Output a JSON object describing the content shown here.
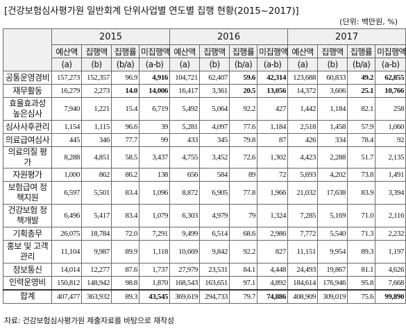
{
  "title": "[건강보험심사평가원 일반회계 단위사업별 연도별 집행 현황(2015~2017)]",
  "unit": "(단위: 백만원, %)",
  "years": [
    "2015",
    "2016",
    "2017"
  ],
  "columns": [
    {
      "name": "예산액",
      "code": "(a)"
    },
    {
      "name": "집행액",
      "code": "(b)"
    },
    {
      "name": "집행률",
      "code": "(b/a)"
    },
    {
      "name": "미집행액",
      "code": "(a-b)"
    }
  ],
  "rows": [
    {
      "name": "공통운영경비",
      "values": [
        "157,273",
        "152,357",
        "96.9",
        "4,916",
        "104,721",
        "62,407",
        "59.6",
        "42,314",
        "123,688",
        "60,833",
        "49.2",
        "62,855"
      ],
      "bold": [
        false,
        false,
        false,
        true,
        false,
        false,
        true,
        true,
        false,
        false,
        true,
        true
      ]
    },
    {
      "name": "재무활동",
      "values": [
        "16,279",
        "2,273",
        "14.0",
        "14,006",
        "16,417",
        "3,361",
        "20.5",
        "13,056",
        "14,372",
        "3,606",
        "25.1",
        "10,766"
      ],
      "bold": [
        false,
        false,
        true,
        true,
        false,
        false,
        true,
        true,
        false,
        false,
        true,
        true
      ]
    },
    {
      "name": "효율효과성 높은심사",
      "values": [
        "7,940",
        "1,221",
        "15.4",
        "6,719",
        "5,492",
        "5,064",
        "92.2",
        "427",
        "1,442",
        "1,184",
        "82.1",
        "258"
      ],
      "bold": [
        false,
        false,
        false,
        false,
        false,
        false,
        false,
        false,
        false,
        false,
        false,
        false
      ]
    },
    {
      "name": "심사사후관리",
      "values": [
        "1,154",
        "1,115",
        "96.6",
        "39",
        "5,281",
        "4,097",
        "77.6",
        "1,184",
        "2,518",
        "1,458",
        "57.9",
        "1,060"
      ],
      "bold": [
        false,
        false,
        false,
        false,
        false,
        false,
        false,
        false,
        false,
        false,
        false,
        false
      ]
    },
    {
      "name": "의료급여심사",
      "values": [
        "445",
        "346",
        "77.7",
        "99",
        "433",
        "345",
        "79.8",
        "87",
        "426",
        "334",
        "78.4",
        "92"
      ],
      "bold": [
        false,
        false,
        false,
        false,
        false,
        false,
        false,
        false,
        false,
        false,
        false,
        false
      ]
    },
    {
      "name": "의료의질 평가",
      "values": [
        "8,288",
        "4,851",
        "58.5",
        "3,437",
        "4,755",
        "3,452",
        "72.6",
        "1,302",
        "4,423",
        "2,288",
        "51.7",
        "2,135"
      ],
      "bold": [
        false,
        false,
        false,
        false,
        false,
        false,
        false,
        false,
        false,
        false,
        false,
        false
      ]
    },
    {
      "name": "자원평가",
      "values": [
        "1,000",
        "862",
        "86.2",
        "138",
        "656",
        "584",
        "89",
        "72",
        "5,693",
        "4,202",
        "73.8",
        "1,491"
      ],
      "bold": [
        false,
        false,
        false,
        false,
        false,
        false,
        false,
        false,
        false,
        false,
        false,
        false
      ]
    },
    {
      "name": "보험급여 정책지원",
      "values": [
        "6,597",
        "5,501",
        "83.4",
        "1,096",
        "8,872",
        "6,905",
        "77.8",
        "1,966",
        "21,032",
        "17,638",
        "83.9",
        "3,394"
      ],
      "bold": [
        false,
        false,
        false,
        false,
        false,
        false,
        false,
        false,
        false,
        false,
        false,
        false
      ]
    },
    {
      "name": "건강보험 정책개발",
      "values": [
        "6,496",
        "5,417",
        "83.4",
        "1,079",
        "6,303",
        "4,979",
        "79",
        "1,324",
        "7,285",
        "5,169",
        "71.0",
        "2,116"
      ],
      "bold": [
        false,
        false,
        false,
        false,
        false,
        false,
        false,
        false,
        false,
        false,
        false,
        false
      ]
    },
    {
      "name": "기획총무",
      "values": [
        "26,075",
        "18,784",
        "72.0",
        "7,291",
        "9,499",
        "6,514",
        "68.6",
        "2,986",
        "7,772",
        "5,540",
        "71.3",
        "2,232"
      ],
      "bold": [
        false,
        false,
        false,
        false,
        false,
        false,
        false,
        false,
        false,
        false,
        false,
        false
      ]
    },
    {
      "name": "홍보 및 고객관리",
      "values": [
        "11,104",
        "9,987",
        "89.9",
        "1,118",
        "10,669",
        "9,842",
        "92.2",
        "827",
        "11,151",
        "9,954",
        "89.3",
        "1,197"
      ],
      "bold": [
        false,
        false,
        false,
        false,
        false,
        false,
        false,
        false,
        false,
        false,
        false,
        false
      ]
    },
    {
      "name": "정보통신",
      "values": [
        "14,014",
        "12,277",
        "87.6",
        "1,737",
        "27,979",
        "23,531",
        "84.1",
        "4,448",
        "24,493",
        "19,867",
        "81.1",
        "4,626"
      ],
      "bold": [
        false,
        false,
        false,
        false,
        false,
        false,
        false,
        false,
        false,
        false,
        false,
        false
      ]
    },
    {
      "name": "인력운영비",
      "values": [
        "150,812",
        "148,942",
        "98.8",
        "1,870",
        "168,543",
        "163,651",
        "97.1",
        "4,892",
        "184,614",
        "176,946",
        "95.8",
        "7,668"
      ],
      "bold": [
        false,
        false,
        false,
        false,
        false,
        false,
        false,
        false,
        false,
        false,
        false,
        false
      ]
    }
  ],
  "total": {
    "name": "합계",
    "values": [
      "407,477",
      "363,932",
      "89.3",
      "43,545",
      "369,619",
      "294,733",
      "79.7",
      "74,886",
      "408,909",
      "309,019",
      "75.6",
      "99,890"
    ],
    "bold": [
      false,
      false,
      false,
      true,
      false,
      false,
      false,
      true,
      false,
      false,
      false,
      true
    ]
  },
  "source": "자료: 건강보험심사평가원 제출자료를 바탕으로 재작성"
}
